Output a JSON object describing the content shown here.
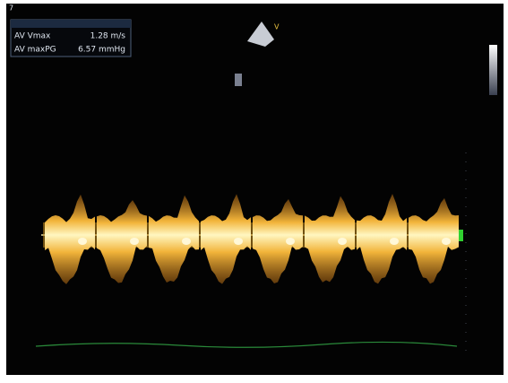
{
  "frame_number": "7",
  "probe_marker": "V",
  "measurements": [
    {
      "label": "AV Vmax",
      "value": "1.28 m/s"
    },
    {
      "label": "AV maxPG",
      "value": "6.57 mmHg"
    }
  ]
}
